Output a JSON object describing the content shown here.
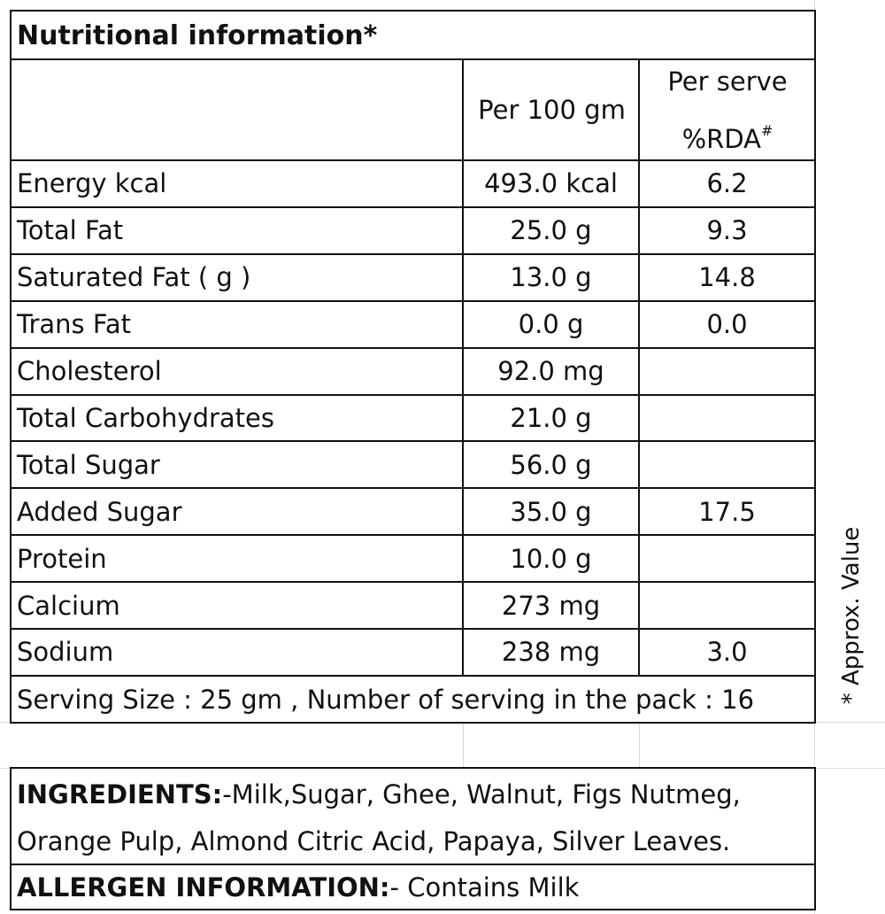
{
  "title": "Nutritional  information*",
  "header": {
    "per100": "Per 100 gm",
    "perserve_line1": "Per serve",
    "perserve_line2": "%RDA",
    "perserve_mark": "#"
  },
  "rows": [
    {
      "name": "Energy kcal",
      "per100": "493.0 kcal",
      "rda": "6.2"
    },
    {
      "name": "Total Fat",
      "per100": "25.0 g",
      "rda": "9.3"
    },
    {
      "name": "Saturated Fat  ( g )",
      "per100": "13.0 g",
      "rda": "14.8"
    },
    {
      "name": "Trans Fat",
      "per100": "0.0 g",
      "rda": "0.0"
    },
    {
      "name": "Cholesterol",
      "per100": "92.0 mg",
      "rda": ""
    },
    {
      "name": "Total Carbohydrates",
      "per100": "21.0 g",
      "rda": ""
    },
    {
      "name": "Total Sugar",
      "per100": "56.0 g",
      "rda": ""
    },
    {
      "name": "Added Sugar",
      "per100": "35.0 g",
      "rda": "17.5"
    },
    {
      "name": "Protein",
      "per100": "10.0 g",
      "rda": ""
    },
    {
      "name": "Calcium",
      "per100": "273 mg",
      "rda": ""
    },
    {
      "name": "Sodium",
      "per100": "238 mg",
      "rda": "3.0"
    }
  ],
  "serving": "Serving Size : 25 gm , Number of serving in the pack : 16",
  "side_note": "* Approx. Value",
  "ingredients": {
    "label": "INGREDIENTS:",
    "line1": "-Milk,Sugar, Ghee, Walnut, Figs Nutmeg,",
    "line2": "Orange Pulp, Almond Citric Acid, Papaya, Silver Leaves."
  },
  "allergen": {
    "label": "ALLERGEN INFORMATION:",
    "text": "- Contains Milk"
  }
}
